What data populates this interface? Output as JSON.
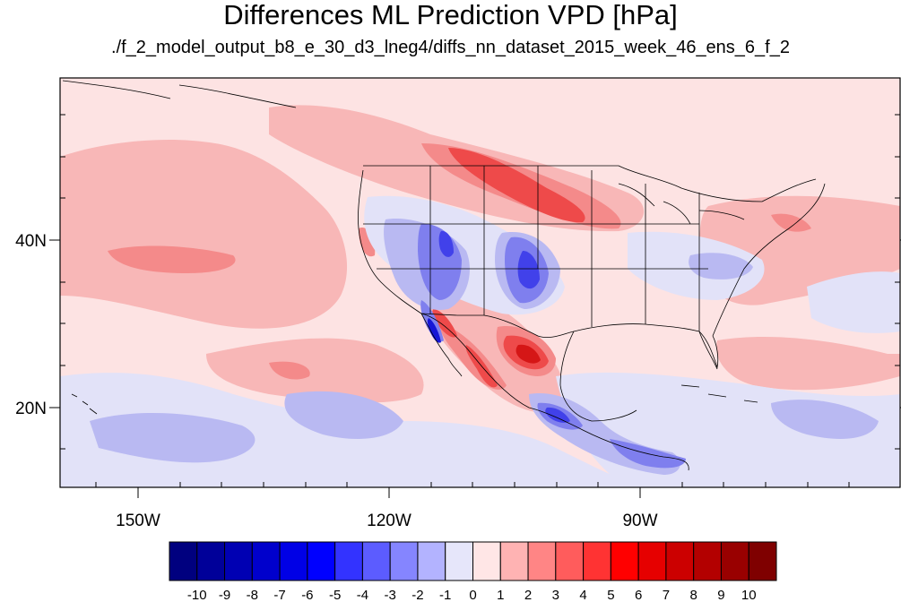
{
  "title": "Differences ML Prediction VPD [hPa]",
  "subtitle": "./f_2_model_output_b8_e_30_d3_lneg4/diffs_nn_dataset_2015_week_46_ens_6_f_2",
  "axes": {
    "lon_labels": [
      "150W",
      "120W",
      "90W"
    ],
    "lat_labels": [
      "40N",
      "20N"
    ]
  },
  "colorbar": {
    "labels": [
      "-10",
      "-9",
      "-8",
      "-7",
      "-6",
      "-5",
      "-4",
      "-3",
      "-2",
      "-1",
      "0",
      "1",
      "2",
      "3",
      "4",
      "5",
      "6",
      "7",
      "8",
      "9",
      "10"
    ],
    "colors": [
      "#00007f",
      "#000099",
      "#0000b3",
      "#0000cc",
      "#0000e6",
      "#0000ff",
      "#3333ff",
      "#5c5cff",
      "#8585ff",
      "#b3b3ff",
      "#e6e6fa",
      "#ffe6e6",
      "#ffb3b3",
      "#ff8585",
      "#ff5c5c",
      "#ff3333",
      "#ff0000",
      "#e60000",
      "#cc0000",
      "#b30000",
      "#990000",
      "#7f0000"
    ]
  },
  "map_colors": {
    "background": "#fde3e3",
    "light_red": "#f8b7b7",
    "mid_red": "#f48a8a",
    "red": "#ee4a4a",
    "dark_red": "#d51616",
    "light_blue": "#e2e2f8",
    "blue_light2": "#b9b9f2",
    "blue_mid": "#7f7fee",
    "blue": "#4141ea",
    "dark_blue": "#1616d6"
  }
}
